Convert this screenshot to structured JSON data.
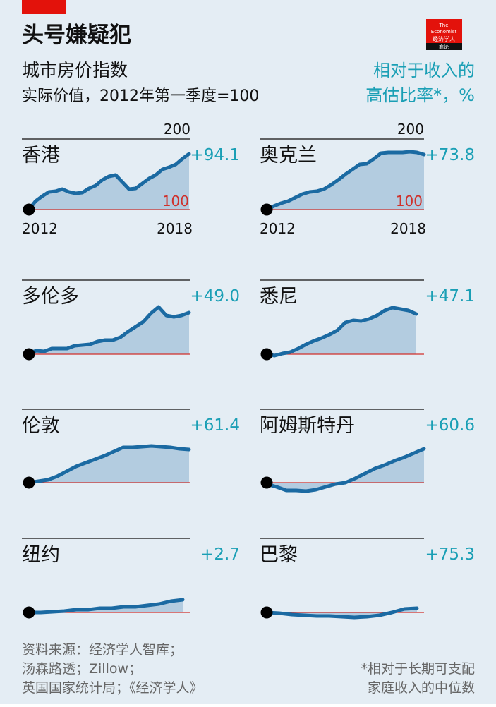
{
  "header": {
    "title": "头号嫌疑犯",
    "subtitle": "城市房价指数",
    "subtitle2": "实际价值，2012年第一季度=100",
    "right_label_1": "相对于收入的",
    "right_label_2": "高估比率*，%",
    "logo_text": [
      "The",
      "Economist",
      "经济学人",
      "商论"
    ]
  },
  "colors": {
    "accent_red": "#e3120b",
    "teal": "#1a9fb5",
    "line": "#1b6aa2",
    "fill": "#b3cce0",
    "baseline": "#d0302a"
  },
  "chart_data": {
    "type": "area",
    "title": "城市房价指数",
    "ylabel": "实际价值，2012年第一季度=100",
    "x_range": [
      "2012",
      "2018"
    ],
    "ylim": [
      85,
      200
    ],
    "axis_labels": {
      "y_top": "200",
      "y_base": "100",
      "x_start": "2012",
      "x_end": "2018"
    },
    "series": [
      {
        "name": "香港",
        "overvaluation": "+94.1",
        "values": [
          100,
          112,
          119,
          125,
          126,
          129,
          125,
          123,
          124,
          130,
          134,
          142,
          147,
          149,
          139,
          129,
          130,
          137,
          144,
          149,
          157,
          160,
          164,
          172,
          179
        ]
      },
      {
        "name": "奥克兰",
        "overvaluation": "+73.8",
        "values": [
          100,
          105,
          109,
          112,
          117,
          122,
          125,
          126,
          129,
          135,
          142,
          150,
          157,
          164,
          165,
          172,
          180,
          181,
          181,
          181,
          182,
          181,
          178
        ]
      },
      {
        "name": "多伦多",
        "overvaluation": "+49.0",
        "values": [
          102,
          105,
          104,
          108,
          108,
          108,
          112,
          113,
          114,
          118,
          120,
          120,
          124,
          132,
          139,
          146,
          158,
          167,
          155,
          153,
          155,
          159
        ]
      },
      {
        "name": "悉尼",
        "overvaluation": "+47.1",
        "values": [
          100,
          98,
          101,
          103,
          108,
          114,
          119,
          123,
          128,
          134,
          145,
          148,
          147,
          150,
          155,
          162,
          166,
          164,
          162,
          157
        ]
      },
      {
        "name": "伦敦",
        "overvaluation": "+61.4",
        "values": [
          100,
          102,
          104,
          109,
          116,
          123,
          128,
          133,
          138,
          144,
          150,
          150,
          151,
          152,
          151,
          150,
          148,
          147
        ]
      },
      {
        "name": "阿姆斯特丹",
        "overvaluation": "+60.6",
        "values": [
          98,
          94,
          89,
          89,
          88,
          90,
          94,
          98,
          100,
          106,
          113,
          120,
          125,
          131,
          136,
          142,
          148
        ]
      },
      {
        "name": "纽约",
        "overvaluation": "+2.7",
        "values": [
          100,
          100,
          101,
          102,
          104,
          104,
          106,
          106,
          108,
          108,
          110,
          112,
          116,
          118
        ]
      },
      {
        "name": "巴黎",
        "overvaluation": "+75.3",
        "values": [
          100,
          99,
          97,
          96,
          95,
          95,
          94,
          93,
          94,
          96,
          100,
          105,
          106
        ]
      }
    ]
  },
  "footer": {
    "source_1": "资料来源：经济学人智库；",
    "source_2": "汤森路透；Zillow；",
    "source_3": "英国国家统计局；《经济学人》",
    "note_1": "*相对于长期可支配",
    "note_2": "家庭收入的中位数"
  }
}
